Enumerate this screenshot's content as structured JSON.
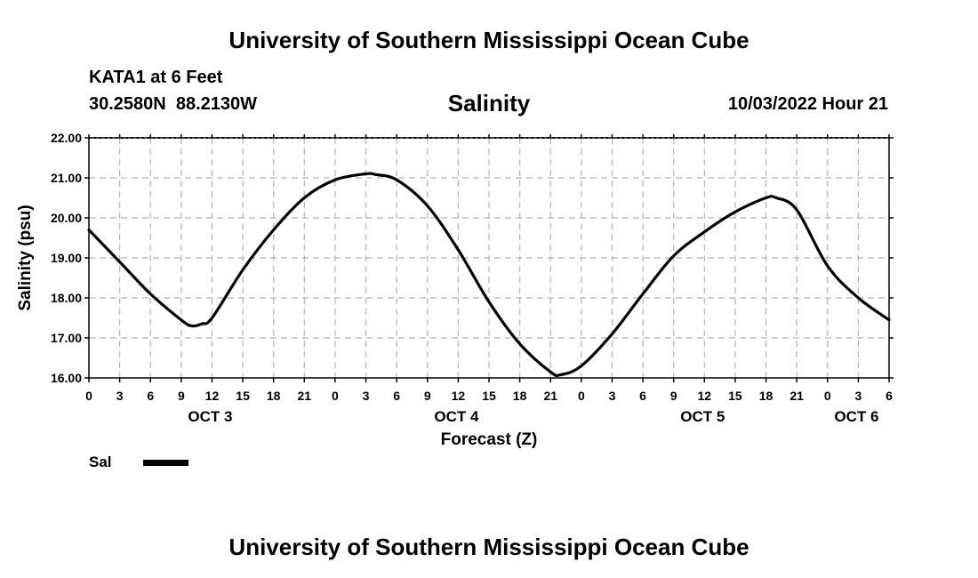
{
  "header": {
    "title": "University of Southern Mississippi Ocean Cube",
    "station": "KATA1 at 6 Feet",
    "coords": "30.2580N  88.2130W",
    "variable": "Salinity",
    "timestamp": "10/03/2022 Hour 21"
  },
  "footer": {
    "title": "University of Southern Mississippi Ocean Cube"
  },
  "legend": {
    "label": "Sal",
    "color": "#000000"
  },
  "chart_data": {
    "type": "line",
    "title": "Salinity",
    "xlabel": "Forecast (Z)",
    "ylabel": "Salinity (psu)",
    "xlim": [
      0,
      78
    ],
    "ylim": [
      16,
      22
    ],
    "grid": true,
    "y_ticks": [
      "16.00",
      "17.00",
      "18.00",
      "19.00",
      "20.00",
      "21.00",
      "22.00"
    ],
    "x_ticks": [
      "0",
      "3",
      "6",
      "9",
      "12",
      "15",
      "18",
      "21",
      "0",
      "3",
      "6",
      "9",
      "12",
      "15",
      "18",
      "21",
      "0",
      "3",
      "6",
      "9",
      "12",
      "15",
      "18",
      "21",
      "0",
      "3",
      "6"
    ],
    "day_labels": [
      {
        "label": "OCT 3",
        "x": 12
      },
      {
        "label": "OCT 4",
        "x": 36
      },
      {
        "label": "OCT 5",
        "x": 60
      },
      {
        "label": "OCT 6",
        "x": 75
      }
    ],
    "series": [
      {
        "name": "Sal",
        "color": "#000000",
        "x": [
          0,
          3,
          6,
          9,
          10,
          11,
          12,
          15,
          18,
          21,
          24,
          27,
          28,
          30,
          33,
          36,
          39,
          42,
          45,
          46,
          48,
          51,
          54,
          57,
          60,
          63,
          66,
          67,
          69,
          72,
          75,
          78
        ],
        "values": [
          19.7,
          18.9,
          18.1,
          17.45,
          17.3,
          17.35,
          17.5,
          18.7,
          19.7,
          20.5,
          20.95,
          21.1,
          21.08,
          20.95,
          20.3,
          19.2,
          17.9,
          16.85,
          16.15,
          16.08,
          16.3,
          17.1,
          18.1,
          19.05,
          19.65,
          20.15,
          20.5,
          20.5,
          20.2,
          18.8,
          18.0,
          17.45
        ]
      }
    ]
  }
}
